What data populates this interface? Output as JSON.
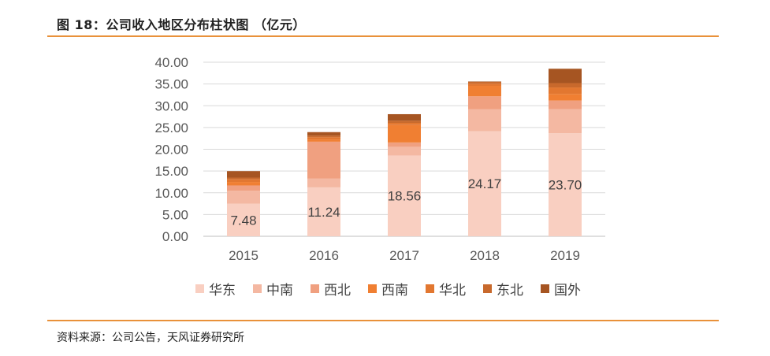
{
  "figure_title": "图 18：公司收入地区分布柱状图 （亿元）",
  "source": "资料来源：公司公告，天风证券研究所",
  "chart_data": {
    "type": "bar",
    "stacked": true,
    "title": "公司收入地区分布柱状图 （亿元）",
    "categories": [
      "2015",
      "2016",
      "2017",
      "2018",
      "2019"
    ],
    "ylim": [
      0,
      40
    ],
    "yticks": [
      "0.00",
      "5.00",
      "10.00",
      "15.00",
      "20.00",
      "25.00",
      "30.00",
      "35.00",
      "40.00"
    ],
    "grid": true,
    "legend_position": "bottom",
    "series": [
      {
        "name": "华东",
        "color": "#f9cfc1",
        "values": [
          7.48,
          11.24,
          18.56,
          24.17,
          23.7
        ],
        "labels": [
          "7.48",
          "11.24",
          "18.56",
          "24.17",
          "23.70"
        ]
      },
      {
        "name": "中南",
        "color": "#f4b8a2",
        "values": [
          3.0,
          2.0,
          2.0,
          5.0,
          5.5
        ]
      },
      {
        "name": "西北",
        "color": "#f0a080",
        "values": [
          1.2,
          8.5,
          1.0,
          3.0,
          2.0
        ]
      },
      {
        "name": "西南",
        "color": "#f07f32",
        "values": [
          0.8,
          0.5,
          4.0,
          2.4,
          1.5
        ]
      },
      {
        "name": "华北",
        "color": "#e27730",
        "values": [
          0.6,
          0.5,
          0.5,
          0.5,
          1.5
        ]
      },
      {
        "name": "东北",
        "color": "#c8692c",
        "values": [
          0.4,
          0.4,
          0.5,
          0.4,
          1.0
        ]
      },
      {
        "name": "国外",
        "color": "#a65522",
        "values": [
          1.5,
          0.8,
          1.5,
          0.1,
          3.3
        ]
      }
    ]
  }
}
